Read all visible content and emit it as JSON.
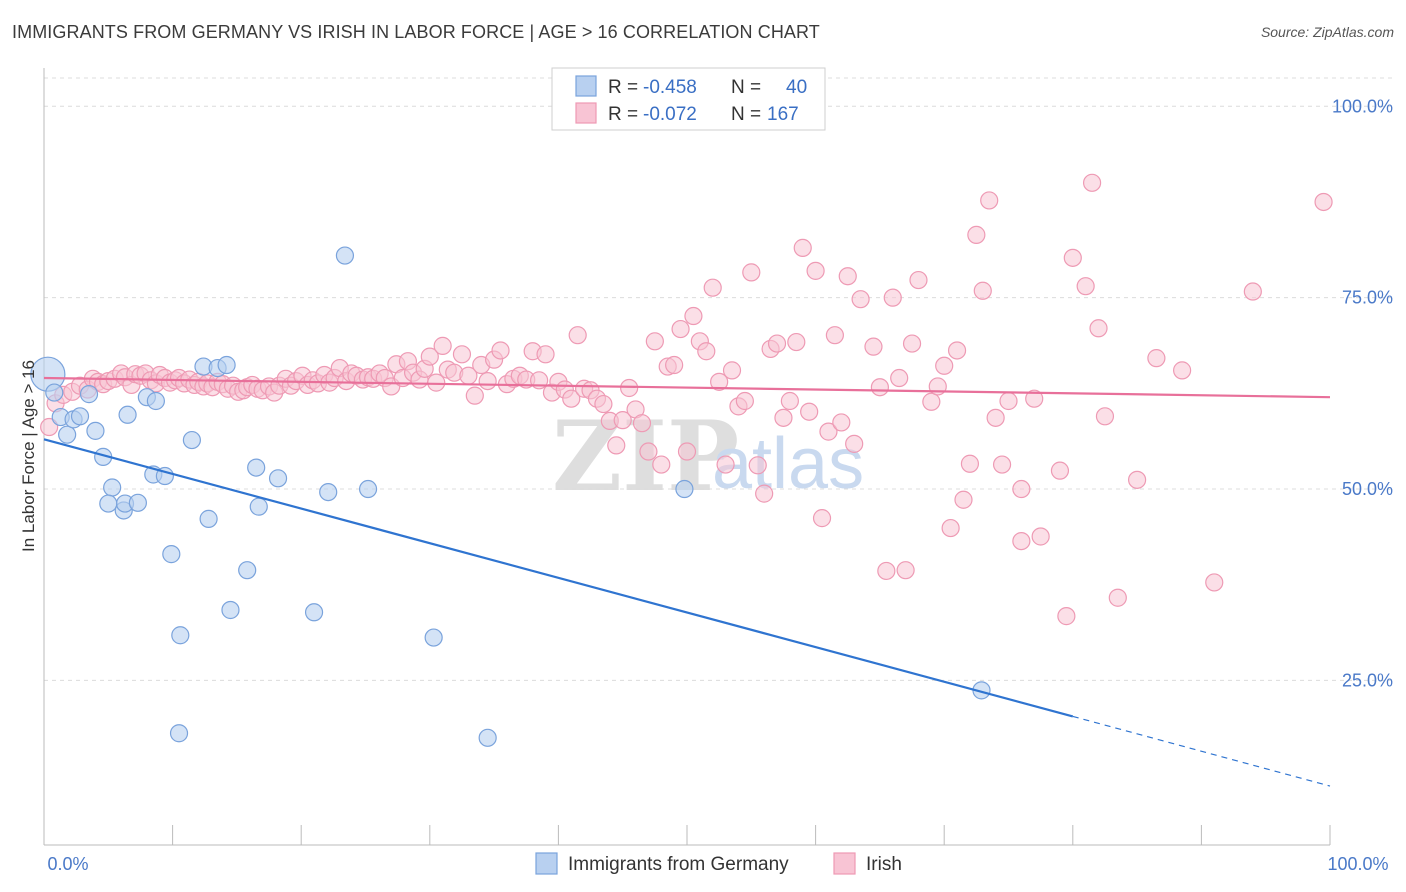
{
  "title": "IMMIGRANTS FROM GERMANY VS IRISH IN LABOR FORCE | AGE > 16 CORRELATION CHART",
  "source": "Source: ZipAtlas.com",
  "watermark": {
    "zip": "ZIP",
    "atlas": "atlas"
  },
  "legend": {
    "rows": [
      {
        "r_label": "R =",
        "r_value": "-0.458",
        "n_label": "N =",
        "n_value": "40"
      },
      {
        "r_label": "R =",
        "r_value": "-0.072",
        "n_label": "N =",
        "n_value": "167"
      }
    ]
  },
  "bottom_legend": [
    "Immigrants from Germany",
    "Irish"
  ],
  "colors": {
    "germany_fill": "#b8d0f0",
    "germany_stroke": "#7aa3dc",
    "germany_line": "#2f74d0",
    "irish_fill": "#f8c4d4",
    "irish_stroke": "#ee9ab4",
    "irish_line": "#e8709a",
    "tick_label": "#4a79c8"
  },
  "chart_data": {
    "type": "scatter",
    "title": "IMMIGRANTS FROM GERMANY VS IRISH IN LABOR FORCE | AGE > 16 CORRELATION CHART",
    "ylabel": "In Labor Force | Age > 16",
    "xlabel": "",
    "x_tick_labels": [
      "0.0%",
      "100.0%"
    ],
    "y_tick_labels": [
      "100.0%",
      "75.0%",
      "50.0%",
      "25.0%"
    ],
    "y_ticks": [
      100,
      75,
      50,
      25
    ],
    "xlim": [
      0,
      100
    ],
    "ylim": [
      3.5,
      105
    ],
    "grid": true,
    "legend_position": "top-center",
    "series": [
      {
        "name": "Immigrants from Germany",
        "r": -0.458,
        "n": 40,
        "trend": {
          "x0": 0,
          "y0": 56.5,
          "x1": 80,
          "y1": 20.3,
          "dash_to_x": 100,
          "dash_to_y": 11.2
        },
        "points": [
          [
            0.3,
            65.0
          ],
          [
            0.8,
            62.6
          ],
          [
            1.3,
            59.4
          ],
          [
            1.8,
            57.1
          ],
          [
            2.3,
            59.1
          ],
          [
            2.8,
            59.5
          ],
          [
            3.5,
            62.4
          ],
          [
            4.0,
            57.6
          ],
          [
            4.6,
            54.2
          ],
          [
            5.3,
            50.2
          ],
          [
            6.2,
            47.2
          ],
          [
            6.3,
            48.1
          ],
          [
            5.0,
            48.1
          ],
          [
            6.5,
            59.7
          ],
          [
            7.3,
            48.2
          ],
          [
            8.0,
            62.0
          ],
          [
            8.5,
            51.9
          ],
          [
            8.7,
            61.5
          ],
          [
            9.4,
            51.7
          ],
          [
            9.9,
            41.5
          ],
          [
            10.6,
            30.9
          ],
          [
            10.5,
            18.1
          ],
          [
            11.5,
            56.4
          ],
          [
            12.4,
            66.0
          ],
          [
            12.8,
            46.1
          ],
          [
            13.5,
            65.8
          ],
          [
            14.2,
            66.2
          ],
          [
            14.5,
            34.2
          ],
          [
            15.8,
            39.4
          ],
          [
            16.5,
            52.8
          ],
          [
            16.7,
            47.7
          ],
          [
            18.2,
            51.4
          ],
          [
            21.0,
            33.9
          ],
          [
            22.1,
            49.6
          ],
          [
            23.4,
            80.5
          ],
          [
            25.2,
            50.0
          ],
          [
            30.3,
            30.6
          ],
          [
            34.5,
            17.5
          ],
          [
            49.8,
            50.0
          ],
          [
            72.9,
            23.7
          ]
        ]
      },
      {
        "name": "Irish",
        "r": -0.072,
        "n": 167,
        "trend": {
          "x0": 0,
          "y0": 64.5,
          "x1": 100,
          "y1": 62.0
        },
        "points": [
          [
            0.4,
            58.1
          ],
          [
            0.9,
            61.2
          ],
          [
            1.5,
            62.3
          ],
          [
            2.2,
            62.7
          ],
          [
            2.8,
            63.5
          ],
          [
            3.4,
            63.0
          ],
          [
            3.8,
            64.4
          ],
          [
            4.2,
            64.0
          ],
          [
            4.6,
            63.7
          ],
          [
            5.0,
            64.1
          ],
          [
            5.5,
            64.4
          ],
          [
            6.0,
            65.1
          ],
          [
            6.3,
            64.6
          ],
          [
            6.8,
            63.6
          ],
          [
            7.1,
            65.0
          ],
          [
            7.5,
            64.8
          ],
          [
            7.9,
            65.1
          ],
          [
            8.3,
            64.2
          ],
          [
            8.7,
            63.8
          ],
          [
            9.0,
            64.9
          ],
          [
            9.4,
            64.5
          ],
          [
            9.8,
            63.9
          ],
          [
            10.2,
            64.2
          ],
          [
            10.5,
            64.5
          ],
          [
            10.9,
            63.8
          ],
          [
            11.3,
            64.3
          ],
          [
            11.7,
            63.6
          ],
          [
            12.0,
            64.0
          ],
          [
            12.4,
            63.4
          ],
          [
            12.7,
            63.8
          ],
          [
            13.1,
            63.3
          ],
          [
            13.5,
            64.0
          ],
          [
            13.9,
            63.7
          ],
          [
            14.3,
            63.1
          ],
          [
            14.7,
            63.5
          ],
          [
            15.1,
            62.7
          ],
          [
            15.5,
            62.9
          ],
          [
            15.8,
            63.3
          ],
          [
            16.2,
            63.6
          ],
          [
            16.6,
            63.1
          ],
          [
            17.0,
            62.9
          ],
          [
            17.5,
            63.4
          ],
          [
            17.9,
            62.6
          ],
          [
            18.3,
            63.5
          ],
          [
            18.8,
            64.4
          ],
          [
            19.2,
            63.5
          ],
          [
            19.6,
            64.1
          ],
          [
            20.1,
            64.8
          ],
          [
            20.5,
            63.6
          ],
          [
            20.9,
            64.2
          ],
          [
            21.3,
            63.8
          ],
          [
            21.8,
            64.9
          ],
          [
            22.2,
            63.9
          ],
          [
            22.6,
            64.5
          ],
          [
            23.0,
            65.8
          ],
          [
            23.5,
            64.1
          ],
          [
            23.9,
            65.1
          ],
          [
            24.3,
            64.8
          ],
          [
            24.8,
            64.3
          ],
          [
            25.2,
            64.6
          ],
          [
            25.6,
            64.4
          ],
          [
            26.1,
            65.1
          ],
          [
            26.5,
            64.5
          ],
          [
            27.0,
            63.4
          ],
          [
            27.4,
            66.3
          ],
          [
            27.9,
            64.5
          ],
          [
            28.3,
            66.7
          ],
          [
            28.7,
            65.2
          ],
          [
            29.2,
            64.3
          ],
          [
            29.6,
            65.7
          ],
          [
            30.0,
            67.3
          ],
          [
            30.5,
            63.9
          ],
          [
            31.0,
            68.7
          ],
          [
            31.4,
            65.6
          ],
          [
            31.9,
            65.2
          ],
          [
            32.5,
            67.6
          ],
          [
            33.0,
            64.8
          ],
          [
            33.5,
            62.2
          ],
          [
            34.0,
            66.2
          ],
          [
            34.5,
            64.1
          ],
          [
            35.0,
            66.9
          ],
          [
            35.5,
            68.1
          ],
          [
            36.0,
            63.7
          ],
          [
            36.5,
            64.4
          ],
          [
            37.0,
            64.8
          ],
          [
            37.5,
            64.3
          ],
          [
            38.0,
            68.0
          ],
          [
            38.5,
            64.2
          ],
          [
            39.0,
            67.6
          ],
          [
            39.5,
            62.6
          ],
          [
            40.0,
            64.0
          ],
          [
            40.5,
            63.0
          ],
          [
            41.0,
            61.8
          ],
          [
            41.5,
            70.1
          ],
          [
            42.0,
            63.1
          ],
          [
            42.5,
            62.9
          ],
          [
            43.0,
            61.8
          ],
          [
            43.5,
            61.1
          ],
          [
            44.0,
            58.9
          ],
          [
            44.5,
            55.7
          ],
          [
            45.0,
            59.0
          ],
          [
            45.5,
            63.2
          ],
          [
            46.0,
            60.4
          ],
          [
            46.5,
            58.6
          ],
          [
            47.0,
            54.9
          ],
          [
            47.5,
            69.3
          ],
          [
            48.0,
            53.2
          ],
          [
            48.5,
            66.0
          ],
          [
            49.0,
            66.2
          ],
          [
            49.5,
            70.9
          ],
          [
            50.0,
            54.9
          ],
          [
            50.5,
            72.6
          ],
          [
            51.0,
            69.3
          ],
          [
            51.5,
            68.0
          ],
          [
            52.0,
            76.3
          ],
          [
            52.5,
            64.0
          ],
          [
            53.0,
            53.2
          ],
          [
            53.5,
            65.5
          ],
          [
            54.0,
            60.8
          ],
          [
            54.5,
            61.5
          ],
          [
            55.0,
            78.3
          ],
          [
            55.5,
            53.1
          ],
          [
            56.0,
            49.4
          ],
          [
            56.5,
            68.3
          ],
          [
            57.0,
            69.0
          ],
          [
            57.5,
            59.3
          ],
          [
            58.0,
            61.5
          ],
          [
            58.5,
            69.2
          ],
          [
            59.0,
            81.5
          ],
          [
            59.5,
            60.1
          ],
          [
            60.0,
            78.5
          ],
          [
            60.5,
            46.2
          ],
          [
            61.0,
            57.5
          ],
          [
            61.5,
            70.1
          ],
          [
            62.0,
            58.7
          ],
          [
            62.5,
            77.8
          ],
          [
            63.0,
            55.9
          ],
          [
            63.5,
            74.8
          ],
          [
            64.5,
            68.6
          ],
          [
            65.0,
            63.3
          ],
          [
            65.5,
            39.3
          ],
          [
            66.0,
            75.0
          ],
          [
            66.5,
            64.5
          ],
          [
            67.0,
            39.4
          ],
          [
            67.5,
            69.0
          ],
          [
            68.0,
            77.3
          ],
          [
            69.0,
            61.4
          ],
          [
            69.5,
            63.4
          ],
          [
            70.0,
            66.1
          ],
          [
            70.5,
            44.9
          ],
          [
            71.0,
            68.1
          ],
          [
            71.5,
            48.6
          ],
          [
            72.0,
            53.3
          ],
          [
            72.5,
            83.2
          ],
          [
            73.0,
            75.9
          ],
          [
            73.5,
            87.7
          ],
          [
            74.0,
            59.3
          ],
          [
            74.5,
            53.2
          ],
          [
            75.0,
            61.5
          ],
          [
            76.0,
            43.2
          ],
          [
            77.0,
            61.8
          ],
          [
            77.5,
            43.8
          ],
          [
            79.0,
            52.4
          ],
          [
            79.5,
            33.4
          ],
          [
            80.0,
            80.2
          ],
          [
            81.0,
            76.5
          ],
          [
            81.5,
            90.0
          ],
          [
            82.0,
            71.0
          ],
          [
            82.5,
            59.5
          ],
          [
            83.5,
            35.8
          ],
          [
            85.0,
            51.2
          ],
          [
            86.5,
            67.1
          ],
          [
            88.5,
            65.5
          ],
          [
            91.0,
            37.8
          ],
          [
            94.0,
            75.8
          ],
          [
            99.5,
            87.5
          ],
          [
            76.0,
            50.0
          ]
        ]
      }
    ]
  }
}
